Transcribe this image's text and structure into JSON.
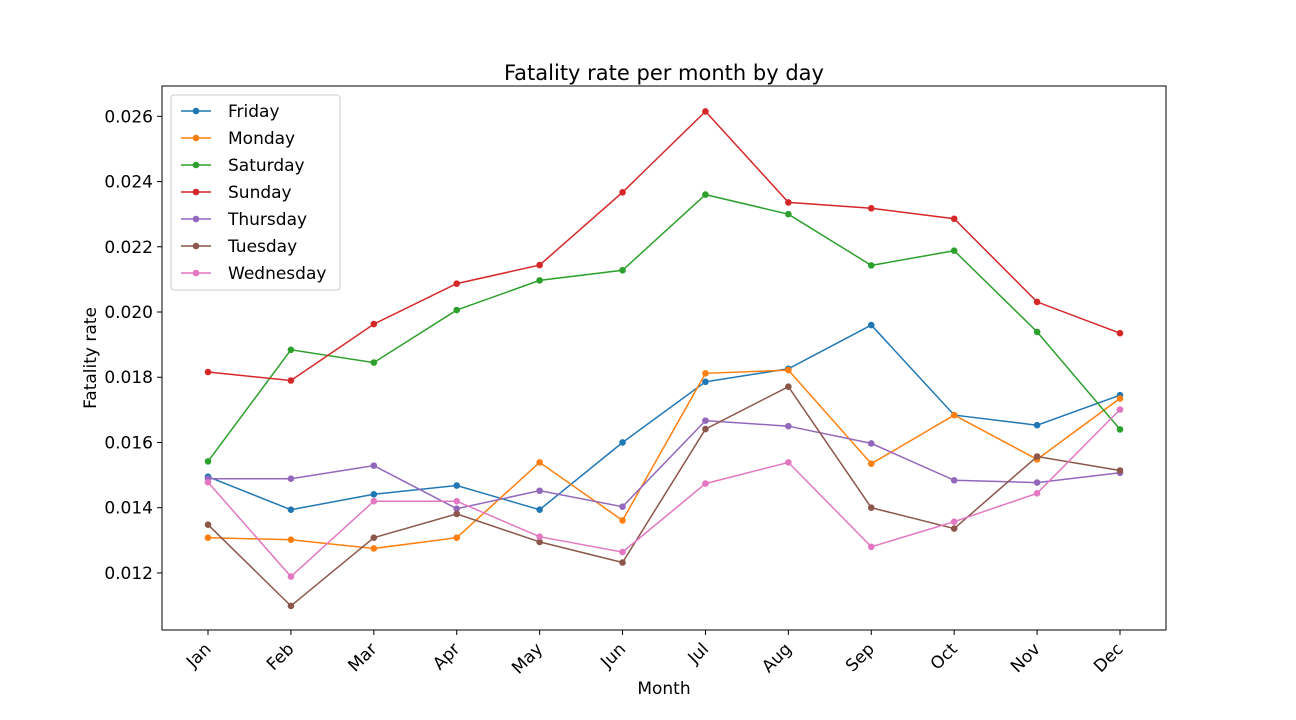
{
  "chart_data": {
    "type": "line",
    "title": "Fatality rate per month by day",
    "xlabel": "Month",
    "ylabel": "Fatality rate",
    "categories": [
      "Jan",
      "Feb",
      "Mar",
      "Apr",
      "May",
      "Jun",
      "Jul",
      "Aug",
      "Sep",
      "Oct",
      "Nov",
      "Dec"
    ],
    "ylim": [
      0.01025,
      0.02693
    ],
    "yticks": [
      "0.012",
      "0.014",
      "0.016",
      "0.018",
      "0.020",
      "0.022",
      "0.024",
      "0.026"
    ],
    "grid": false,
    "legend_position": "top-left",
    "series": [
      {
        "name": "Friday",
        "color": "#1f77b4",
        "values": [
          0.01495,
          0.01394,
          0.01441,
          0.01468,
          0.01394,
          0.016,
          0.01786,
          0.01826,
          0.0196,
          0.01684,
          0.01653,
          0.01745
        ]
      },
      {
        "name": "Monday",
        "color": "#ff7f0e",
        "values": [
          0.01308,
          0.01302,
          0.01275,
          0.01308,
          0.01539,
          0.01361,
          0.01812,
          0.01822,
          0.01535,
          0.01684,
          0.01548,
          0.01735
        ]
      },
      {
        "name": "Saturday",
        "color": "#2ca02c",
        "values": [
          0.01542,
          0.01884,
          0.01845,
          0.02006,
          0.02097,
          0.02128,
          0.0236,
          0.023,
          0.02143,
          0.02188,
          0.01939,
          0.0164
        ]
      },
      {
        "name": "Sunday",
        "color": "#d62728",
        "values": [
          0.01816,
          0.0179,
          0.01963,
          0.02087,
          0.02144,
          0.02367,
          0.02615,
          0.02336,
          0.02318,
          0.02286,
          0.02031,
          0.01935
        ]
      },
      {
        "name": "Thursday",
        "color": "#9467bd",
        "values": [
          0.01489,
          0.01489,
          0.01529,
          0.01397,
          0.01452,
          0.01403,
          0.01667,
          0.0165,
          0.01597,
          0.01484,
          0.01477,
          0.01507
        ]
      },
      {
        "name": "Tuesday",
        "color": "#8c564b",
        "values": [
          0.01348,
          0.01099,
          0.01308,
          0.01381,
          0.01295,
          0.01232,
          0.01641,
          0.01771,
          0.014,
          0.01336,
          0.01557,
          0.01514
        ]
      },
      {
        "name": "Wednesday",
        "color": "#e377c2",
        "values": [
          0.01478,
          0.01189,
          0.0142,
          0.0142,
          0.01311,
          0.01264,
          0.01474,
          0.01539,
          0.0128,
          0.01357,
          0.01444,
          0.01701
        ]
      }
    ]
  }
}
